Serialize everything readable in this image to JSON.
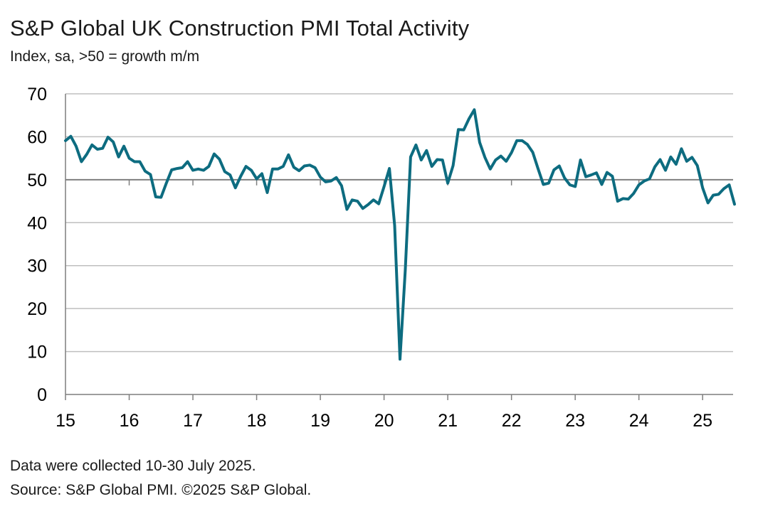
{
  "header": {
    "title": "S&P Global UK Construction PMI Total Activity",
    "subtitle": "Index, sa, >50 = growth m/m"
  },
  "footer": {
    "note": "Data were collected 10-30 July 2025.",
    "source": "Source: S&P Global PMI. ©2025 S&P Global."
  },
  "colors": {
    "line": "#0d6c80",
    "grid": "#bfbfbf",
    "axis": "#7f7f7f"
  },
  "chart_data": {
    "type": "line",
    "title": "S&P Global UK Construction PMI Total Activity",
    "ylabel": "Index, sa, >50 = growth m/m",
    "ylim": [
      0,
      70
    ],
    "y_ticks": [
      "0",
      "10",
      "20",
      "30",
      "40",
      "50",
      "60",
      "70"
    ],
    "x_ticks": [
      "15",
      "16",
      "17",
      "18",
      "19",
      "20",
      "21",
      "22",
      "23",
      "24",
      "25"
    ],
    "x_range": [
      "2015-01",
      "2025-07"
    ],
    "reference_line": 50,
    "grid": true,
    "legend": "none",
    "series": [
      {
        "values": [
          59.1,
          60.1,
          57.8,
          54.2,
          55.9,
          58.1,
          57.1,
          57.3,
          59.9,
          58.8,
          55.3,
          57.8,
          55.0,
          54.2,
          54.2,
          52.0,
          51.2,
          46.0,
          45.9,
          49.2,
          52.3,
          52.6,
          52.8,
          54.2,
          52.2,
          52.5,
          52.2,
          53.1,
          56.0,
          54.8,
          51.9,
          51.1,
          48.1,
          50.8,
          53.1,
          52.2,
          50.2,
          51.4,
          47.0,
          52.5,
          52.5,
          53.1,
          55.8,
          52.9,
          52.1,
          53.2,
          53.4,
          52.8,
          50.6,
          49.5,
          49.7,
          50.5,
          48.6,
          43.1,
          45.3,
          45.0,
          43.3,
          44.2,
          45.3,
          44.4,
          48.4,
          52.6,
          39.3,
          8.2,
          28.9,
          55.3,
          58.1,
          54.6,
          56.8,
          53.1,
          54.7,
          54.6,
          49.2,
          53.3,
          61.7,
          61.6,
          64.2,
          66.3,
          58.7,
          55.2,
          52.5,
          54.6,
          55.5,
          54.3,
          56.3,
          59.1,
          59.1,
          58.2,
          56.4,
          52.6,
          48.9,
          49.2,
          52.3,
          53.2,
          50.4,
          48.8,
          48.4,
          54.6,
          50.7,
          51.1,
          51.6,
          48.9,
          51.7,
          50.8,
          45.0,
          45.6,
          45.5,
          46.8,
          48.8,
          49.7,
          50.2,
          53.0,
          54.7,
          52.2,
          55.3,
          53.6,
          57.2,
          54.3,
          55.2,
          53.3,
          48.1,
          44.6,
          46.4,
          46.6,
          47.9,
          48.8,
          44.3
        ]
      }
    ]
  }
}
